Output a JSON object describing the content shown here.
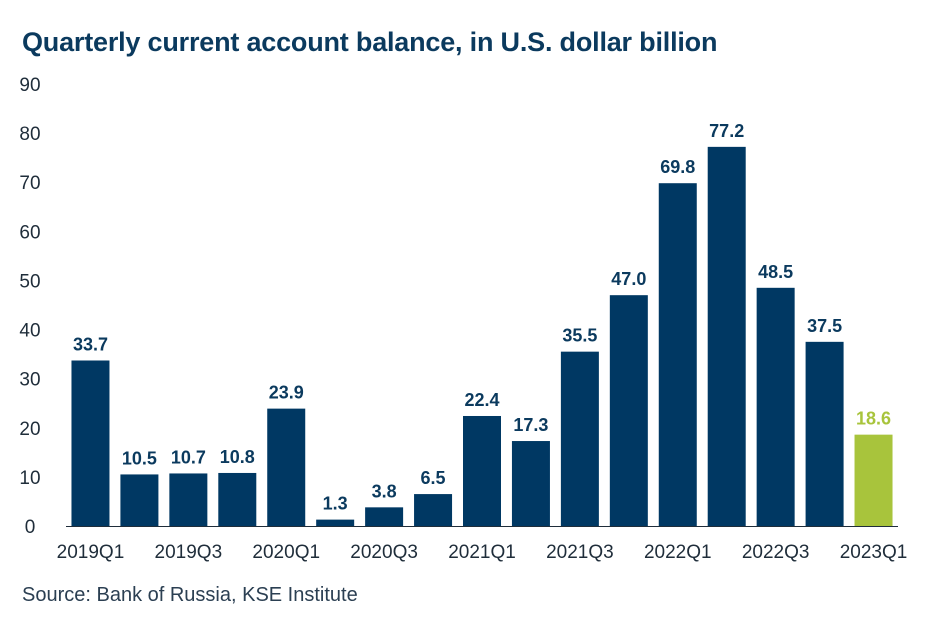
{
  "chart_data": {
    "type": "bar",
    "title": "Quarterly current account balance, in U.S. dollar billion",
    "xlabel": "",
    "ylabel": "",
    "ylim": [
      0,
      90
    ],
    "yticks": [
      0,
      10,
      20,
      30,
      40,
      50,
      60,
      70,
      80,
      90
    ],
    "grid": false,
    "categories": [
      "2019Q1",
      "2019Q2",
      "2019Q3",
      "2019Q4",
      "2020Q1",
      "2020Q2",
      "2020Q3",
      "2020Q4",
      "2021Q1",
      "2021Q2",
      "2021Q3",
      "2021Q4",
      "2022Q1",
      "2022Q2",
      "2022Q3",
      "2022Q4",
      "2023Q1"
    ],
    "x_tick_labels": [
      "2019Q1",
      "",
      "2019Q3",
      "",
      "2020Q1",
      "",
      "2020Q3",
      "",
      "2021Q1",
      "",
      "2021Q3",
      "",
      "2022Q1",
      "",
      "2022Q3",
      "",
      "2023Q1"
    ],
    "values": [
      33.7,
      10.5,
      10.7,
      10.8,
      23.9,
      1.3,
      3.8,
      6.5,
      22.4,
      17.3,
      35.5,
      47.0,
      69.8,
      77.2,
      48.5,
      37.5,
      18.6
    ],
    "data_labels": [
      "33.7",
      "10.5",
      "10.7",
      "10.8",
      "23.9",
      "1.3",
      "3.8",
      "6.5",
      "22.4",
      "17.3",
      "35.5",
      "47.0",
      "69.8",
      "77.2",
      "48.5",
      "37.5",
      "18.6"
    ],
    "bar_colors": [
      "#003863",
      "#003863",
      "#003863",
      "#003863",
      "#003863",
      "#003863",
      "#003863",
      "#003863",
      "#003863",
      "#003863",
      "#003863",
      "#003863",
      "#003863",
      "#003863",
      "#003863",
      "#003863",
      "#a8c43c"
    ],
    "label_colors": [
      "#0b3a5e",
      "#0b3a5e",
      "#0b3a5e",
      "#0b3a5e",
      "#0b3a5e",
      "#0b3a5e",
      "#0b3a5e",
      "#0b3a5e",
      "#0b3a5e",
      "#0b3a5e",
      "#0b3a5e",
      "#0b3a5e",
      "#0b3a5e",
      "#0b3a5e",
      "#0b3a5e",
      "#0b3a5e",
      "#a8c43c"
    ],
    "axis_color": "#1f2d3a",
    "text_color": "#1f2d3a",
    "source": "Source: Bank of Russia, KSE Institute"
  }
}
